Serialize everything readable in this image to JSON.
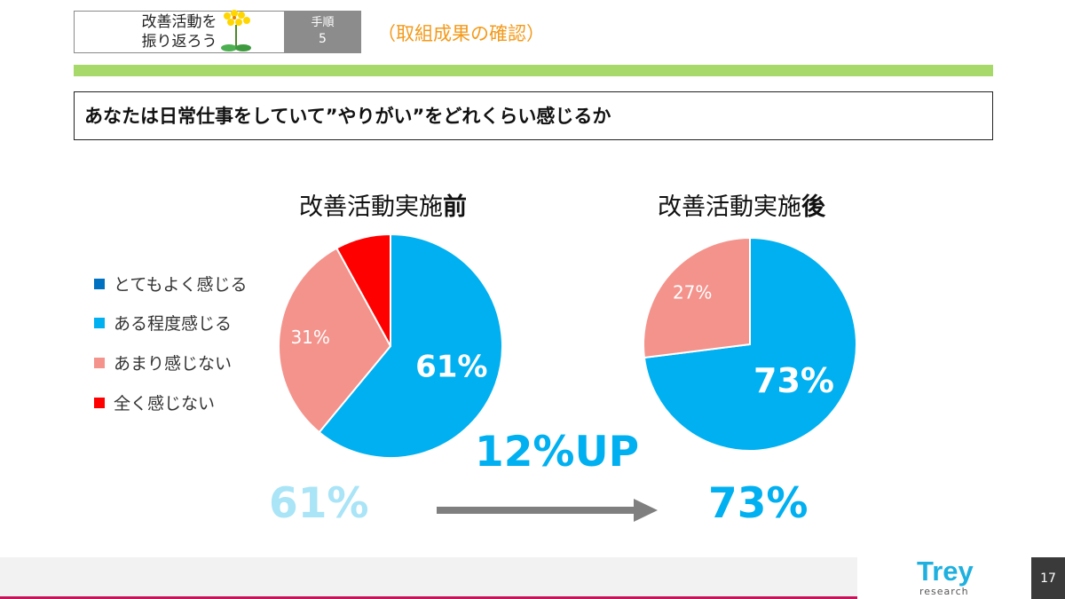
{
  "header": {
    "title_line1": "改善活動を",
    "title_line2": "振り返ろう",
    "step_label": "手順",
    "step_number": "5",
    "subtitle": "（取組成果の確認）"
  },
  "question": "あなたは日常仕事をしていて”やりがい”をどれくらい感じるか",
  "legend": [
    {
      "label": "とてもよく感じる",
      "color": "#0070c0"
    },
    {
      "label": "ある程度感じる",
      "color": "#00b0f0"
    },
    {
      "label": "あまり感じない",
      "color": "#f4938c"
    },
    {
      "label": "全く感じない",
      "color": "#ff0000"
    }
  ],
  "chart_data": [
    {
      "type": "pie",
      "title_main": "改善活動実施",
      "title_emph": "前",
      "slices": [
        {
          "name": "ある程度感じる",
          "value": 61,
          "label": "61%",
          "color": "#00b0f0"
        },
        {
          "name": "あまり感じない",
          "value": 31,
          "label": "31%",
          "color": "#f4938c"
        },
        {
          "name": "全く感じない",
          "value": 8,
          "label": "",
          "color": "#ff0000"
        }
      ]
    },
    {
      "type": "pie",
      "title_main": "改善活動実施",
      "title_emph": "後",
      "slices": [
        {
          "name": "ある程度感じる",
          "value": 73,
          "label": "73%",
          "color": "#00b0f0"
        },
        {
          "name": "あまり感じない",
          "value": 27,
          "label": "27%",
          "color": "#f4938c"
        }
      ]
    }
  ],
  "summary": {
    "before": "61%",
    "after": "73%",
    "increase": "12%UP",
    "before_color": "#a9e4f7",
    "after_color": "#00b0f0"
  },
  "footer": {
    "logo_main": "Trey",
    "logo_sub": "research",
    "page_number": "17"
  }
}
